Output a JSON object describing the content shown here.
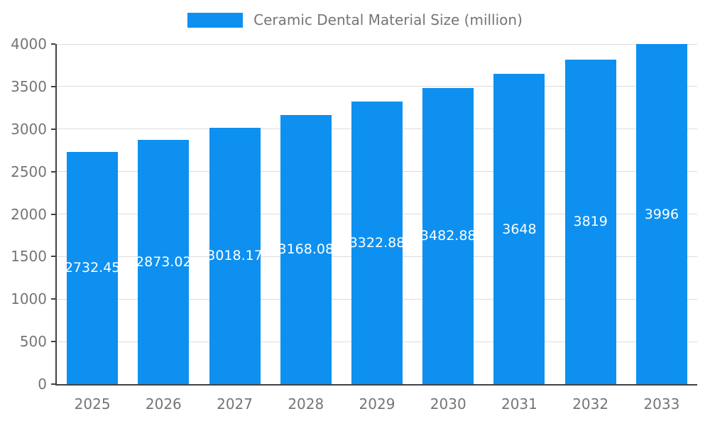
{
  "chart_data": {
    "type": "bar",
    "title": "Ceramic Dental Material Size (million)",
    "categories": [
      "2025",
      "2026",
      "2027",
      "2028",
      "2029",
      "2030",
      "2031",
      "2032",
      "2033"
    ],
    "values": [
      2732.45,
      2873.02,
      3018.17,
      3168.08,
      3322.88,
      3482.88,
      3648,
      3819,
      3996
    ],
    "value_labels": [
      "2732.45",
      "2873.02",
      "3018.17",
      "3168.08",
      "3322.88",
      "3482.88",
      "3648",
      "3819",
      "3996"
    ],
    "xlabel": "",
    "ylabel": "",
    "ylim": [
      0,
      4000
    ],
    "yticks": [
      0,
      500,
      1000,
      1500,
      2000,
      2500,
      3000,
      3500,
      4000
    ],
    "grid": true,
    "legend_position": "top",
    "colors": {
      "bar": "#0e90f0",
      "grid": "#dcdcdc",
      "axis": "#424242",
      "tick_text": "#757575",
      "value_text": "#ffffff"
    }
  }
}
